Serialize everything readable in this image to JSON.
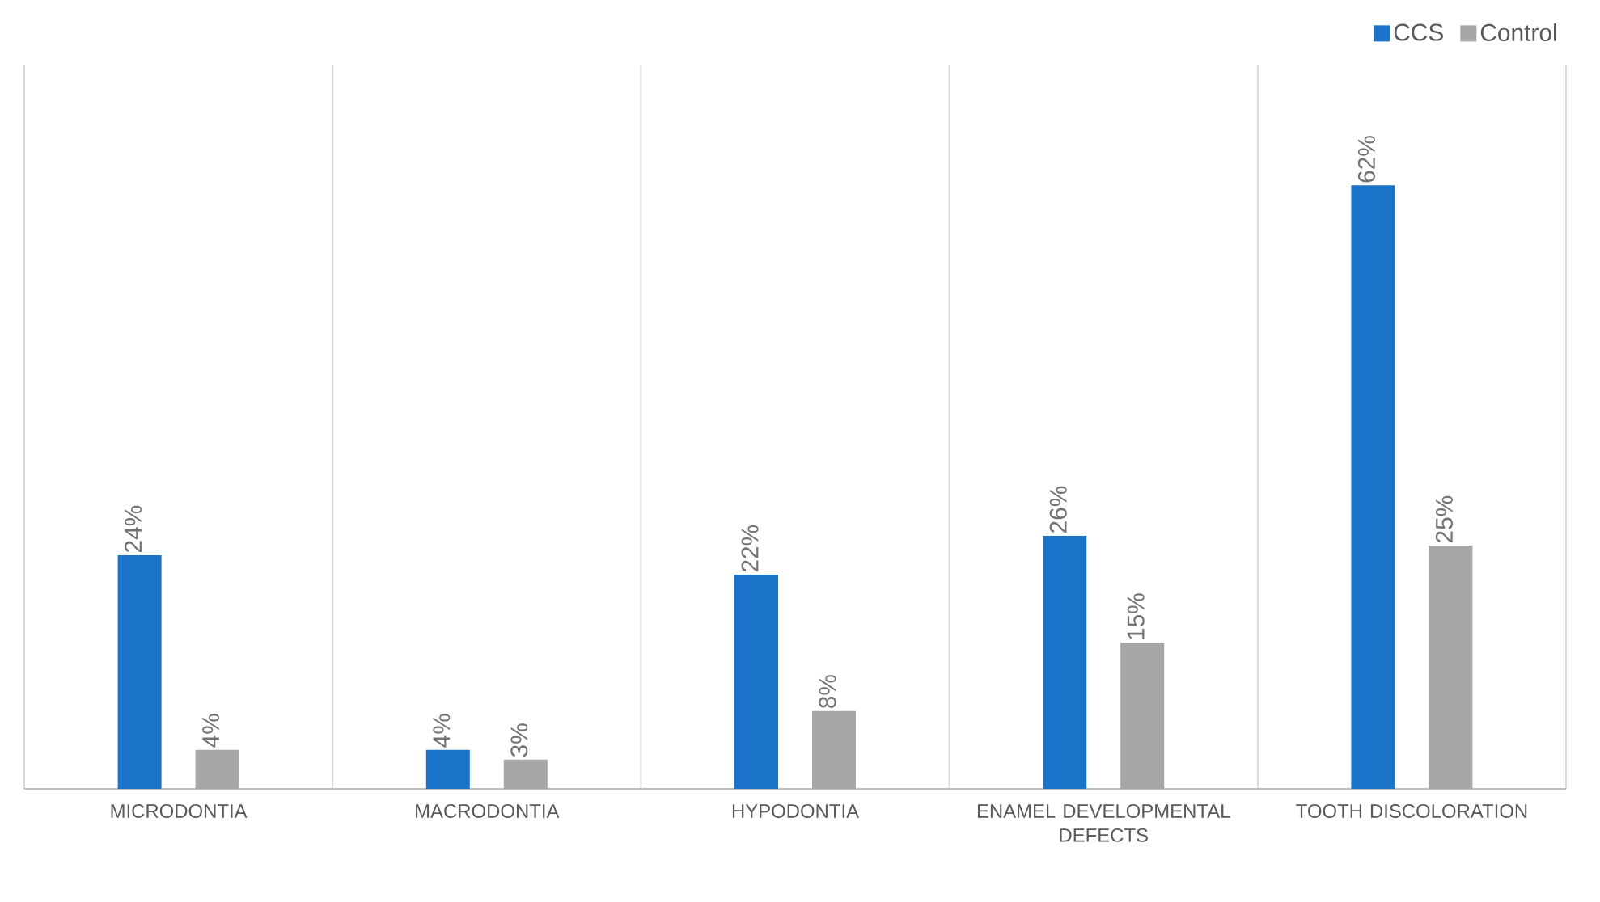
{
  "chart_data": {
    "type": "bar",
    "categories": [
      "MICRODONTIA",
      "MACRODONTIA",
      "HYPODONTIA",
      "ENAMEL DEVELOPMENTAL DEFECTS",
      "TOOTH DISCOLORATION"
    ],
    "series": [
      {
        "name": "CCS",
        "color": "#1a72c9",
        "values": [
          24,
          4,
          22,
          26,
          62
        ],
        "value_labels": [
          "24%",
          "4%",
          "22%",
          "26%",
          "62%"
        ]
      },
      {
        "name": "Control",
        "color": "#a6a6a6",
        "values": [
          4,
          3,
          8,
          15,
          25
        ],
        "value_labels": [
          "4%",
          "3%",
          "8%",
          "15%",
          "25%"
        ]
      }
    ],
    "grid": "x",
    "legend": "top right"
  }
}
